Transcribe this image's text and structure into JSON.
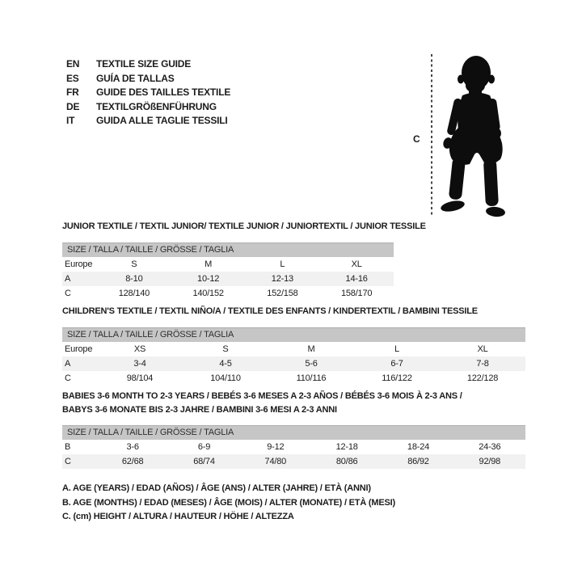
{
  "colors": {
    "header_bar": "#c6c6c6",
    "row_shade": "#f1f1f1",
    "text": "#1c1c1c",
    "silhouette": "#0d0d0d"
  },
  "language_guide": {
    "items": [
      {
        "code": "EN",
        "label": "TEXTILE SIZE GUIDE"
      },
      {
        "code": "ES",
        "label": "GUÍA DE TALLAS"
      },
      {
        "code": "FR",
        "label": "GUIDE DES TAILLES TEXTILE"
      },
      {
        "code": "DE",
        "label": "TEXTILGRÖßENFÜHRUNG"
      },
      {
        "code": "IT",
        "label": "GUIDA ALLE TAGLIE TESSILI"
      }
    ]
  },
  "figure": {
    "label": "C",
    "description": "toddler silhouette with height measure line"
  },
  "tables": [
    {
      "title_lines": [
        "JUNIOR TEXTILE / TEXTIL JUNIOR/ TEXTILE JUNIOR / JUNIORTEXTIL / JUNIOR TESSILE"
      ],
      "size_header": "SIZE / TALLA / TAILLE / GRÖSSE / TAGLIA",
      "rows": [
        {
          "label": "Europe",
          "cells": [
            "S",
            "M",
            "L",
            "XL"
          ]
        },
        {
          "label": "A",
          "cells": [
            "8-10",
            "10-12",
            "12-13",
            "14-16"
          ]
        },
        {
          "label": "C",
          "cells": [
            "128/140",
            "140/152",
            "152/158",
            "158/170"
          ]
        }
      ]
    },
    {
      "title_lines": [
        "CHILDREN'S TEXTILE / TEXTIL NIÑO/A / TEXTILE DES ENFANTS / KINDERTEXTIL / BAMBINI TESSILE"
      ],
      "size_header": "SIZE / TALLA / TAILLE / GRÖSSE / TAGLIA",
      "rows": [
        {
          "label": "Europe",
          "cells": [
            "XS",
            "S",
            "M",
            "L",
            "XL"
          ]
        },
        {
          "label": "A",
          "cells": [
            "3-4",
            "4-5",
            "5-6",
            "6-7",
            "7-8"
          ]
        },
        {
          "label": "C",
          "cells": [
            "98/104",
            "104/110",
            "110/116",
            "116/122",
            "122/128"
          ]
        }
      ]
    },
    {
      "title_lines": [
        "BABIES 3-6 MONTH TO 2-3 YEARS / BEBÉS 3-6 MESES A 2-3 AÑOS / BÉBÉS 3-6 MOIS À 2-3 ANS /",
        "BABYS 3-6 MONATE BIS 2-3 JAHRE / BAMBINI 3-6 MESI A 2-3 ANNI"
      ],
      "size_header": "SIZE / TALLA / TAILLE / GRÖSSE / TAGLIA",
      "rows": [
        {
          "label": "B",
          "cells": [
            "3-6",
            "6-9",
            "9-12",
            "12-18",
            "18-24",
            "24-36"
          ]
        },
        {
          "label": "C",
          "cells": [
            "62/68",
            "68/74",
            "74/80",
            "80/86",
            "86/92",
            "92/98"
          ]
        }
      ]
    }
  ],
  "legend": {
    "lines": [
      "A. AGE (YEARS) / EDAD (AÑOS) / ÂGE (ANS) / ALTER (JAHRE) / ETÀ (ANNI)",
      "B. AGE (MONTHS) / EDAD (MESES) / ÂGE (MOIS) / ALTER (MONATE) / ETÀ (MESI)",
      "C. (cm) HEIGHT / ALTURA / HAUTEUR / HÖHE / ALTEZZA"
    ]
  }
}
